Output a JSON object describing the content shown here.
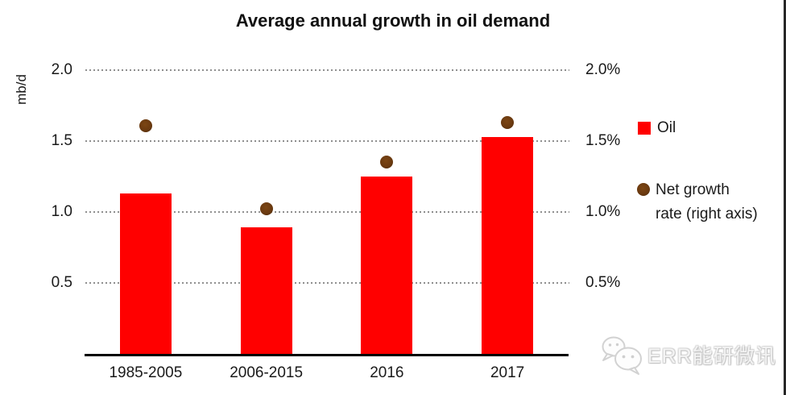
{
  "chart_data": {
    "type": "bar",
    "title": "Average annual growth in oil demand",
    "categories": [
      "1985-2005",
      "2006-2015",
      "2016",
      "2017"
    ],
    "series": [
      {
        "name": "Oil",
        "chart": "bar",
        "axis": "left",
        "color": "#ff0000",
        "values": [
          1.13,
          0.89,
          1.25,
          1.53
        ]
      },
      {
        "name": "Net growth rate (right axis)",
        "chart": "scatter",
        "axis": "right",
        "color": "#6b3a10",
        "values": [
          1.61,
          1.02,
          1.35,
          1.63
        ]
      }
    ],
    "left_axis": {
      "unit": "mb/d",
      "tick_labels": [
        "2.0",
        "1.5",
        "1.0",
        "0.5"
      ],
      "tick_values": [
        2.0,
        1.5,
        1.0,
        0.5
      ],
      "min": 0,
      "max": 2.0
    },
    "right_axis": {
      "tick_labels": [
        "2.0%",
        "1.5%",
        "1.0%",
        "0.5%"
      ],
      "tick_values": [
        2.0,
        1.5,
        1.0,
        0.5
      ],
      "min": 0,
      "max": 2.0
    },
    "grid": "horizontal-dotted",
    "legend_position": "right"
  },
  "legend": {
    "net_growth_line1": "Net growth",
    "net_growth_line2": "rate (right axis)"
  },
  "watermark": {
    "text": "ERR能研微讯",
    "icon": "wechat-chat-bubbles-icon"
  },
  "colors": {
    "bar_red": "#ff0000",
    "dot_brown": "#6b3a10",
    "gridline": "#8f8f8f",
    "axis_line": "#000000",
    "text": "#1a1a1a",
    "watermark_text": "#f4f4f4",
    "right_edge_line": "#262626"
  }
}
